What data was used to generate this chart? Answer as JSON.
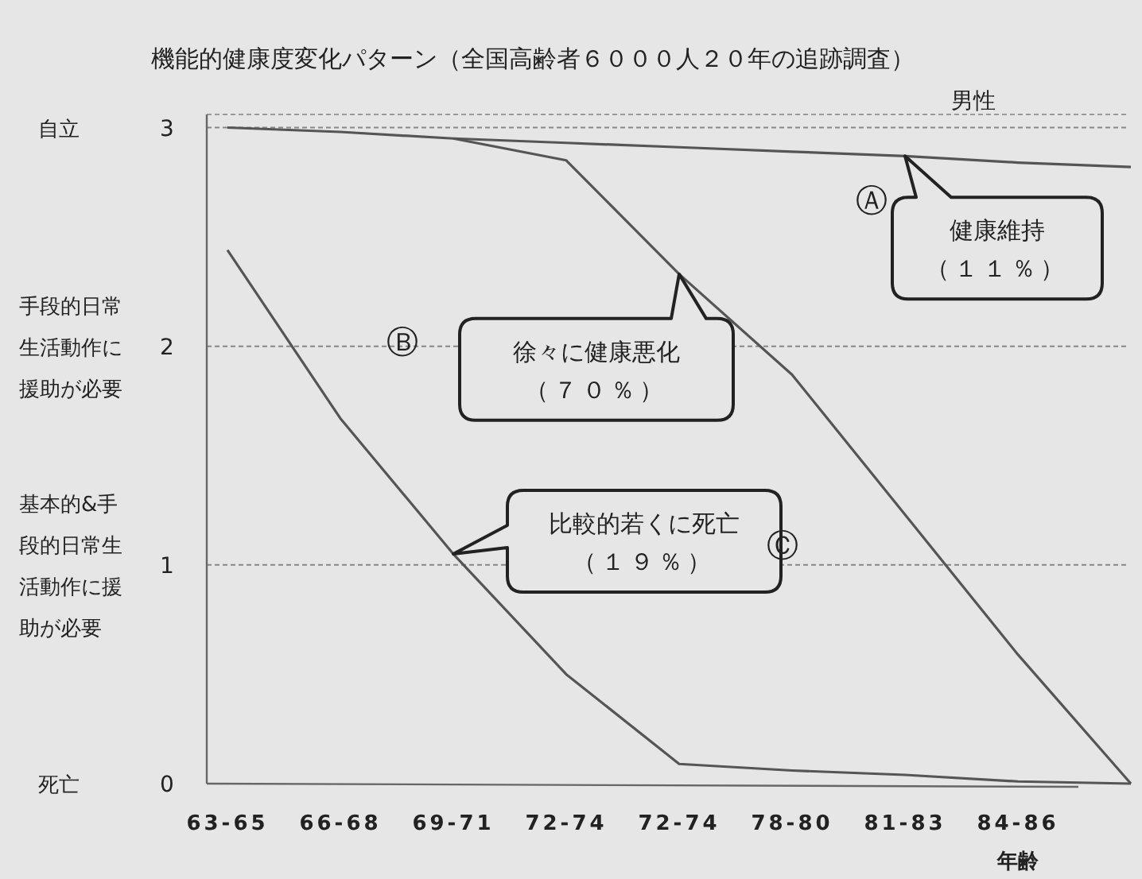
{
  "chart_data": {
    "type": "line",
    "title": "機能的健康度変化パターン（全国高齢者６０００人２０年の追跡調査）",
    "xlabel": "年齢",
    "categories": [
      "63-65",
      "66-68",
      "69-71",
      "72-74",
      "72-74",
      "78-80",
      "81-83",
      "84-86",
      null
    ],
    "ylim": [
      0,
      3.06
    ],
    "yticks": [
      0,
      1,
      2,
      3
    ],
    "grid": "y",
    "marker": "none",
    "line_style": "solid",
    "series": [
      {
        "color": "#555555",
        "values": [
          3,
          2.98,
          2.95,
          2.93,
          2.91,
          2.89,
          2.87,
          2.84,
          2.82
        ]
      },
      {
        "color": "#555555",
        "values": [
          null,
          null,
          2.95,
          2.85,
          2.33,
          1.87,
          1.23,
          0.59,
          0
        ]
      },
      {
        "color": "#555555",
        "values": [
          2.44,
          1.67,
          1.05,
          0.5,
          0.09,
          0.06,
          0.04,
          0.01,
          0
        ]
      }
    ],
    "annotations": [
      "健康維持",
      "（１１％）",
      "徐々に健康悪化",
      "（７０％）",
      "比較的若くに死亡",
      "（１９％）",
      "Ⓐ",
      "Ⓑ",
      "Ⓒ",
      "男性",
      "自立",
      "手段的日常生活動作に援助が必要",
      "基本的&手段的日常生活動作に援助が必要",
      "死亡"
    ]
  }
}
